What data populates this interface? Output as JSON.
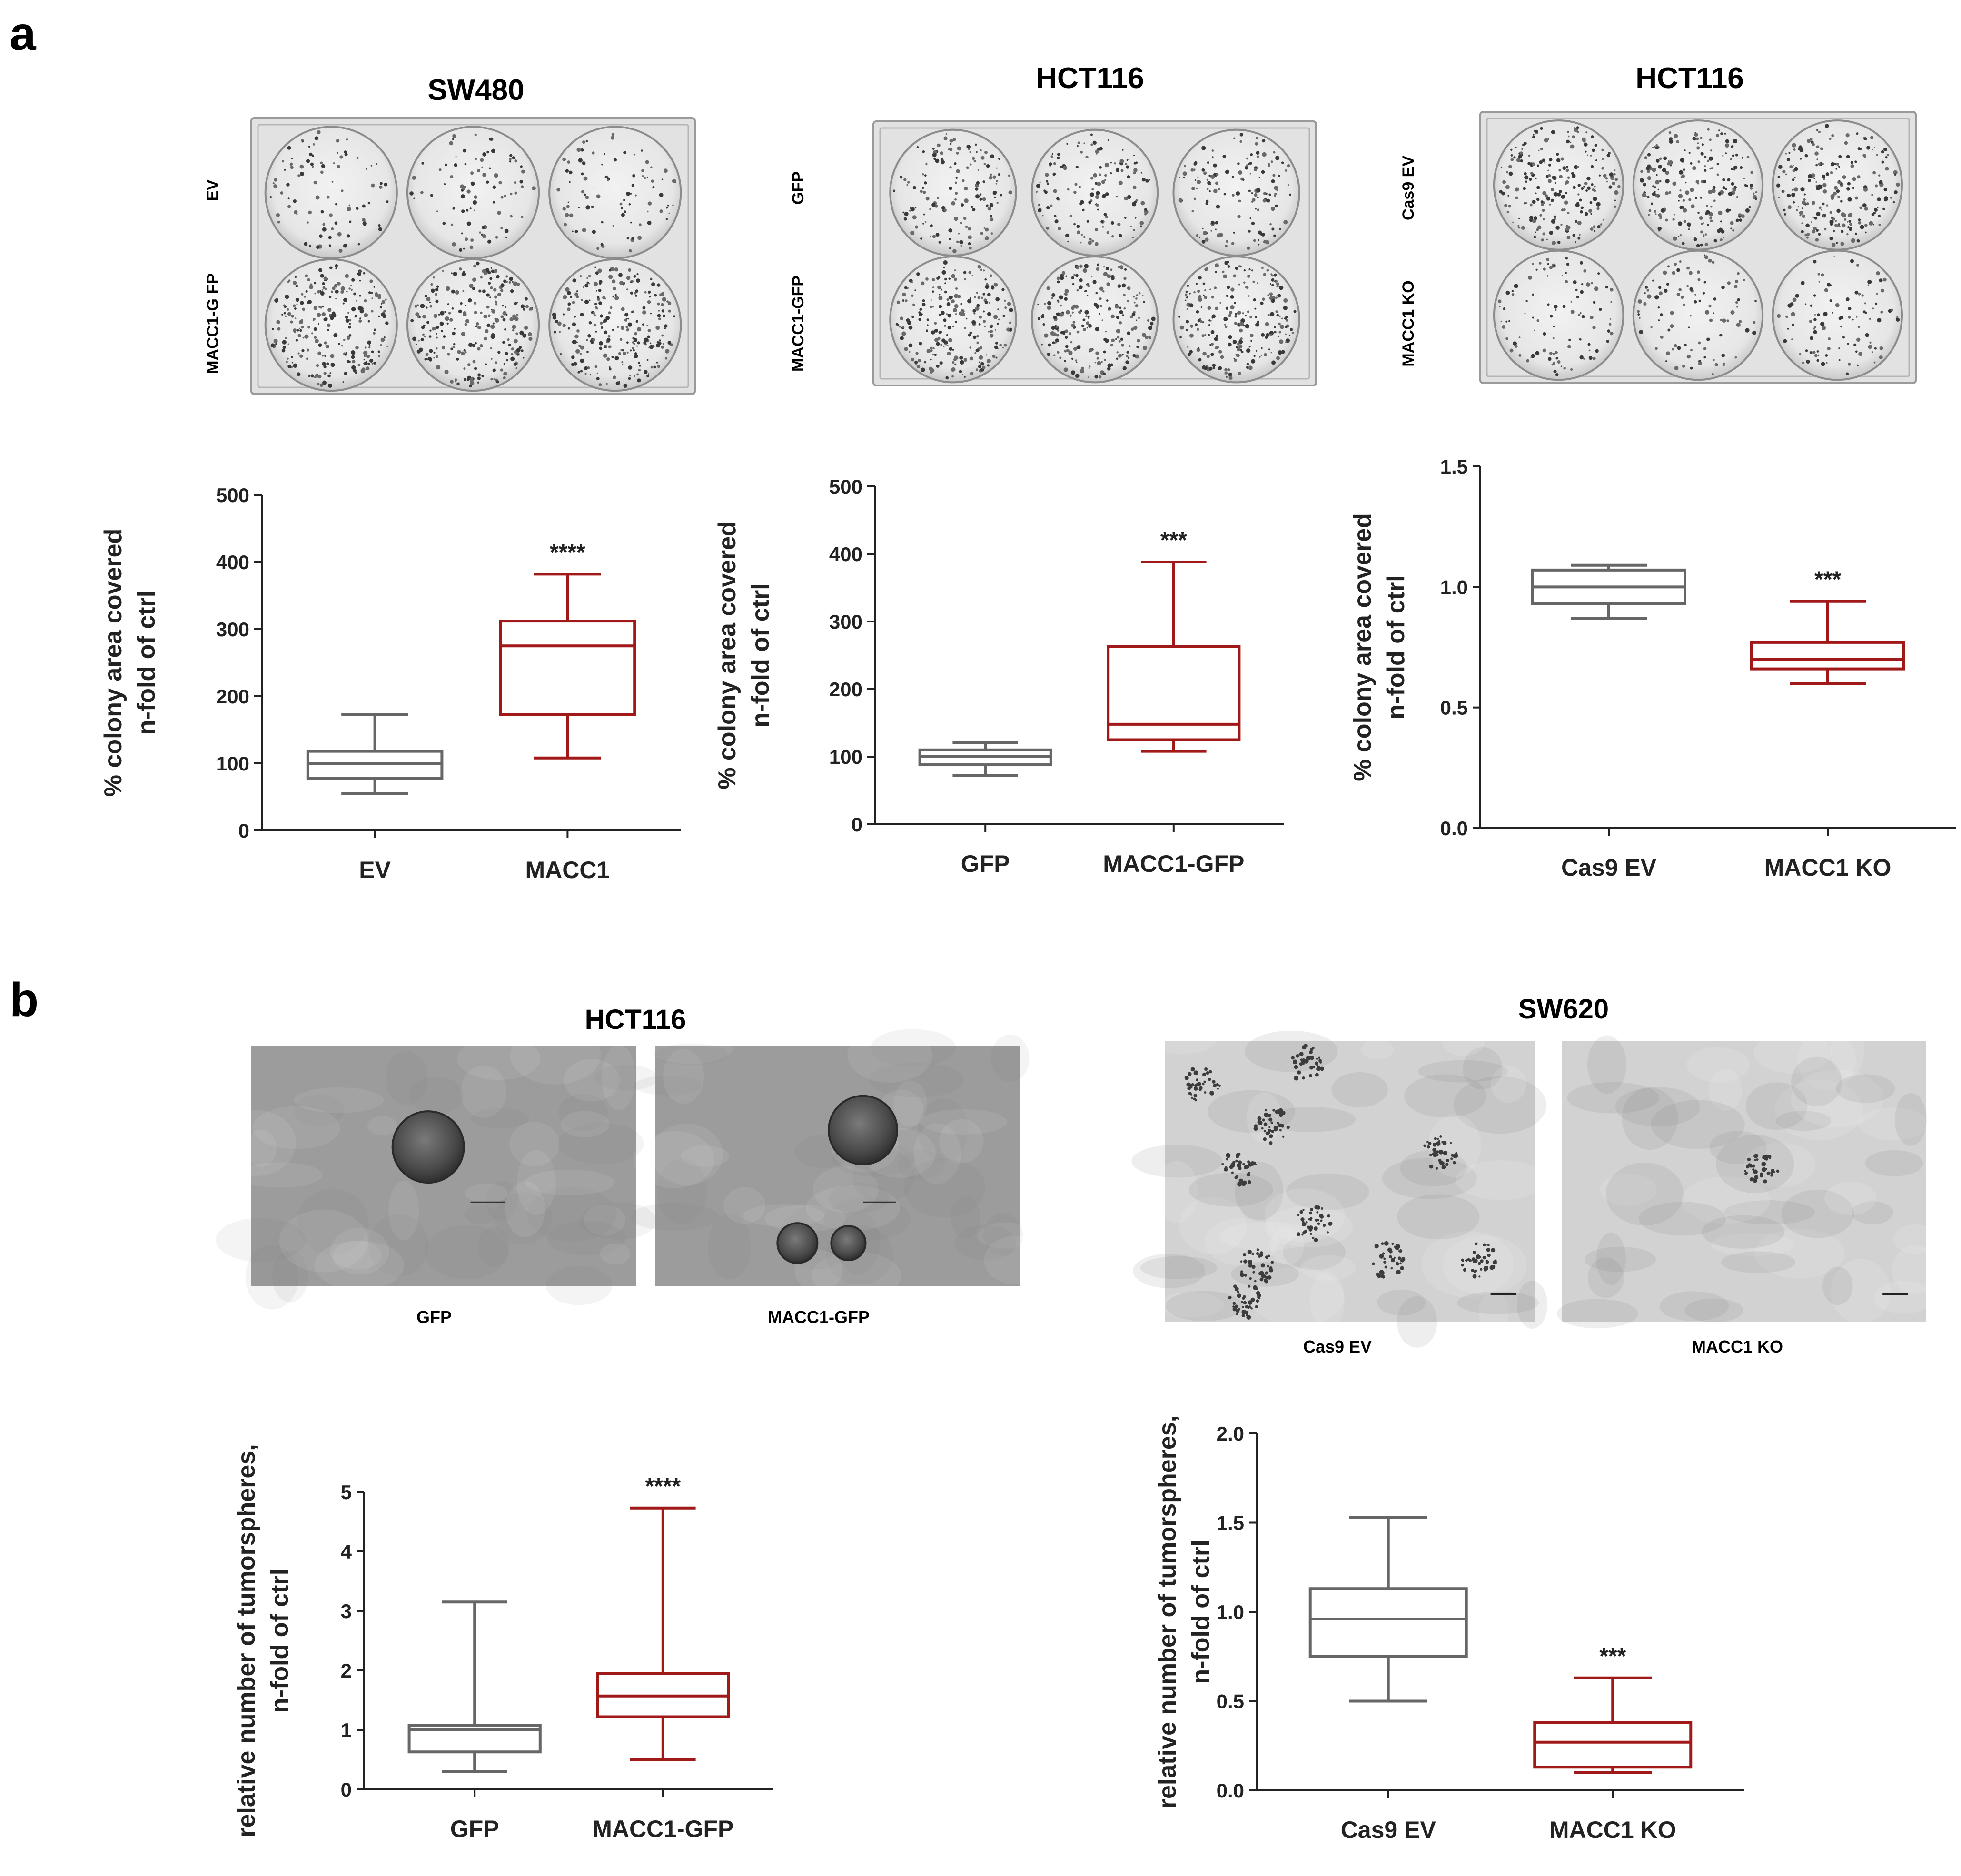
{
  "panels": {
    "a": {
      "letter": "a",
      "plates": [
        {
          "title": "SW480",
          "row_labels": [
            "EV",
            "MACC1-G FP"
          ]
        },
        {
          "title": "HCT116",
          "row_labels": [
            "GFP",
            "MACC1-GFP"
          ]
        },
        {
          "title": "HCT116",
          "row_labels": [
            "Cas9 EV",
            "MACC1 KO"
          ]
        }
      ]
    },
    "b": {
      "letter": "b",
      "micrographs": [
        {
          "title": "HCT116",
          "labels": [
            "GFP",
            "MACC1-GFP"
          ]
        },
        {
          "title": "SW620",
          "labels": [
            "Cas9 EV",
            "MACC1 KO"
          ]
        }
      ]
    }
  },
  "colors": {
    "control": "#666666",
    "treatment": "#a01818",
    "axis": "#222222"
  },
  "chart_data": [
    {
      "type": "box",
      "panel": "a",
      "ylabel": [
        "% colony area covered",
        "n-fold of ctrl"
      ],
      "ylim": [
        0,
        500
      ],
      "yticks": [
        0,
        100,
        200,
        300,
        400,
        500
      ],
      "yticklabels": [
        "0",
        "100",
        "200",
        "300",
        "400",
        "500"
      ],
      "categories": [
        "EV",
        "MACC1"
      ],
      "boxes": [
        {
          "min": 55,
          "q1": 78,
          "median": 100,
          "q3": 118,
          "max": 173,
          "color": "control"
        },
        {
          "min": 108,
          "q1": 173,
          "median": 275,
          "q3": 312,
          "max": 382,
          "color": "treatment",
          "sig": "****"
        }
      ]
    },
    {
      "type": "box",
      "panel": "a",
      "ylabel": [
        "% colony area covered",
        "n-fold of ctrl"
      ],
      "ylim": [
        0,
        500
      ],
      "yticks": [
        0,
        100,
        200,
        300,
        400,
        500
      ],
      "yticklabels": [
        "0",
        "100",
        "200",
        "300",
        "400",
        "500"
      ],
      "categories": [
        "GFP",
        "MACC1-GFP"
      ],
      "boxes": [
        {
          "min": 72,
          "q1": 88,
          "median": 100,
          "q3": 110,
          "max": 121,
          "color": "control"
        },
        {
          "min": 108,
          "q1": 125,
          "median": 148,
          "q3": 263,
          "max": 388,
          "color": "treatment",
          "sig": "***"
        }
      ]
    },
    {
      "type": "box",
      "panel": "a",
      "ylabel": [
        "% colony area covered",
        "n-fold of ctrl"
      ],
      "ylim": [
        0,
        1.5
      ],
      "yticks": [
        0,
        0.5,
        1.0,
        1.5
      ],
      "yticklabels": [
        "0.0",
        "0.5",
        "1.0",
        "1.5"
      ],
      "categories": [
        "Cas9 EV",
        "MACC1 KO"
      ],
      "boxes": [
        {
          "min": 0.87,
          "q1": 0.93,
          "median": 1.0,
          "q3": 1.07,
          "max": 1.09,
          "color": "control"
        },
        {
          "min": 0.6,
          "q1": 0.66,
          "median": 0.7,
          "q3": 0.77,
          "max": 0.94,
          "color": "treatment",
          "sig": "***"
        }
      ]
    },
    {
      "type": "box",
      "panel": "b",
      "ylabel": [
        "relative number of tumorspheres,",
        "n-fold of ctrl"
      ],
      "ylim": [
        0,
        5
      ],
      "yticks": [
        0,
        1,
        2,
        3,
        4,
        5
      ],
      "yticklabels": [
        "0",
        "1",
        "2",
        "3",
        "4",
        "5"
      ],
      "categories": [
        "GFP",
        "MACC1-GFP"
      ],
      "boxes": [
        {
          "min": 0.3,
          "q1": 0.63,
          "median": 1.0,
          "q3": 1.08,
          "max": 3.15,
          "color": "control"
        },
        {
          "min": 0.5,
          "q1": 1.22,
          "median": 1.57,
          "q3": 1.95,
          "max": 4.73,
          "color": "treatment",
          "sig": "****"
        }
      ]
    },
    {
      "type": "box",
      "panel": "b",
      "ylabel": [
        "relative number of tumorspheres,",
        "n-fold of ctrl"
      ],
      "ylim": [
        0,
        2.0
      ],
      "yticks": [
        0,
        0.5,
        1.0,
        1.5,
        2.0
      ],
      "yticklabels": [
        "0.0",
        "0.5",
        "1.0",
        "1.5",
        "2.0"
      ],
      "categories": [
        "Cas9 EV",
        "MACC1 KO"
      ],
      "boxes": [
        {
          "min": 0.5,
          "q1": 0.75,
          "median": 0.96,
          "q3": 1.13,
          "max": 1.53,
          "color": "control"
        },
        {
          "min": 0.1,
          "q1": 0.13,
          "median": 0.27,
          "q3": 0.38,
          "max": 0.63,
          "color": "treatment",
          "sig": "***"
        }
      ]
    }
  ]
}
